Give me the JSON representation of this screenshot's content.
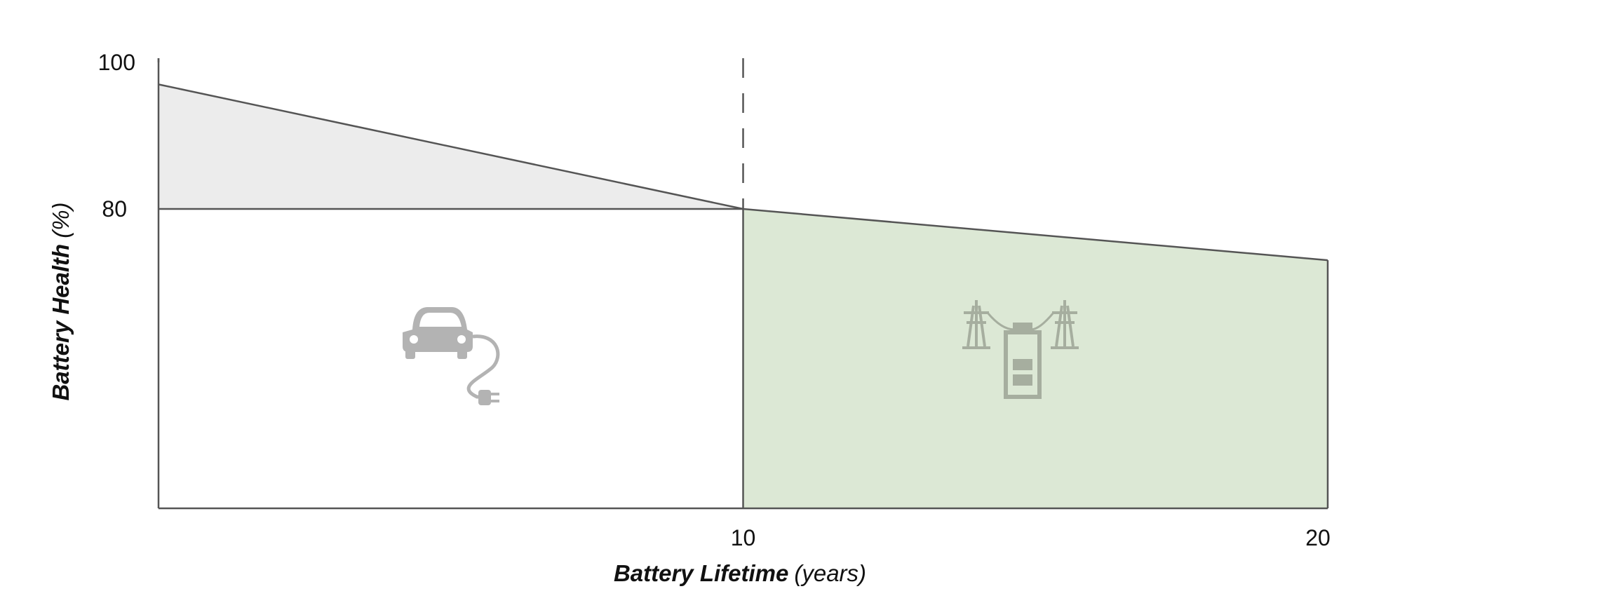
{
  "chart_data": {
    "type": "area",
    "title": "",
    "xlabel": "Battery Lifetime",
    "xlabel_unit": "(years)",
    "ylabel": "Battery Health",
    "ylabel_unit": "(%)",
    "xlim": [
      0,
      20
    ],
    "x_ticks": [
      "10",
      "20"
    ],
    "y_ticks": [
      "100",
      "80"
    ],
    "threshold": 80,
    "divider_x": 10,
    "grid": false,
    "legend": "none",
    "series": [
      {
        "x": [
          0,
          10,
          20
        ],
        "y": [
          97,
          80,
          73
        ]
      }
    ],
    "regions": [
      {
        "phase": "electric-vehicle",
        "x": [
          0,
          10
        ],
        "icon": "electric-car-icon"
      },
      {
        "phase": "grid-storage",
        "x": [
          10,
          20
        ],
        "icon": "grid-battery-icon",
        "color": "#dce8d5"
      }
    ],
    "colors": {
      "line": "#555555",
      "above_threshold_fill": "#ececec",
      "second_life_fill": "#dce8d5",
      "icon": "#b3b3b3",
      "icon_on_green": "#a6ae9f"
    }
  }
}
